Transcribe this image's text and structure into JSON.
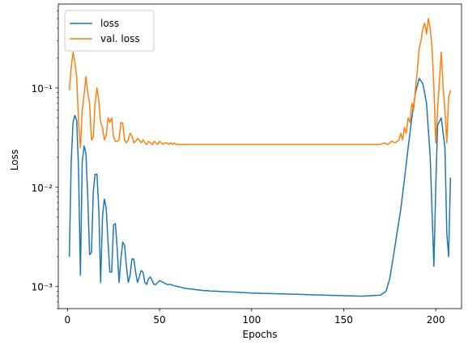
{
  "chart_data": {
    "type": "line",
    "title": "",
    "xlabel": "Epochs",
    "ylabel": "Loss",
    "xlim": [
      -5,
      214
    ],
    "ylim": [
      0.0006,
      0.7
    ],
    "yscale": "log",
    "grid": false,
    "legend_position": "top-left",
    "x_ticks": [
      0,
      50,
      100,
      150,
      200
    ],
    "x_tick_labels": [
      "0",
      "50",
      "100",
      "150",
      "200"
    ],
    "y_ticks": [
      0.001,
      0.01,
      0.1
    ],
    "y_tick_labels": [
      "10⁻³",
      "10⁻²",
      "10⁻¹"
    ],
    "series": [
      {
        "name": "loss",
        "color": "#1f77b4",
        "x": [
          1,
          2,
          3,
          4,
          5,
          6,
          7,
          8,
          9,
          10,
          11,
          12,
          13,
          14,
          15,
          16,
          17,
          18,
          19,
          20,
          21,
          22,
          23,
          24,
          25,
          26,
          27,
          28,
          29,
          30,
          31,
          32,
          33,
          34,
          35,
          36,
          37,
          38,
          39,
          40,
          41,
          42,
          43,
          44,
          45,
          46,
          47,
          48,
          50,
          52,
          54,
          56,
          58,
          60,
          62,
          64,
          66,
          68,
          70,
          72,
          74,
          76,
          78,
          80,
          85,
          90,
          95,
          100,
          110,
          120,
          130,
          140,
          150,
          160,
          165,
          170,
          173,
          175,
          177,
          179,
          181,
          183,
          185,
          187,
          189,
          191,
          193,
          195,
          197,
          199,
          200,
          201,
          203,
          205,
          206,
          207,
          208
        ],
        "y": [
          0.002,
          0.018,
          0.045,
          0.053,
          0.047,
          0.015,
          0.0013,
          0.018,
          0.026,
          0.022,
          0.008,
          0.0021,
          0.0022,
          0.009,
          0.0135,
          0.0135,
          0.006,
          0.0011,
          0.005,
          0.0076,
          0.0062,
          0.0028,
          0.0014,
          0.0014,
          0.0042,
          0.0043,
          0.0024,
          0.0011,
          0.0019,
          0.0028,
          0.0026,
          0.0016,
          0.0011,
          0.0013,
          0.0019,
          0.0019,
          0.0014,
          0.0011,
          0.00125,
          0.00145,
          0.0014,
          0.0011,
          0.00105,
          0.0012,
          0.00125,
          0.00115,
          0.00105,
          0.00105,
          0.00115,
          0.0011,
          0.00105,
          0.00105,
          0.00102,
          0.001,
          0.00098,
          0.00096,
          0.00095,
          0.00094,
          0.00093,
          0.00092,
          0.00091,
          0.00091,
          0.0009,
          0.0009,
          0.00089,
          0.00088,
          0.00087,
          0.00086,
          0.00085,
          0.00084,
          0.00083,
          0.00082,
          0.00081,
          0.0008,
          0.00081,
          0.00082,
          0.0009,
          0.0012,
          0.002,
          0.0035,
          0.006,
          0.012,
          0.025,
          0.05,
          0.09,
          0.125,
          0.11,
          0.07,
          0.02,
          0.0016,
          0.01,
          0.042,
          0.05,
          0.025,
          0.0035,
          0.002,
          0.0125
        ]
      },
      {
        "name": "val. loss",
        "color": "#ff7f0e",
        "x": [
          1,
          2,
          3,
          4,
          5,
          6,
          7,
          8,
          9,
          10,
          11,
          12,
          13,
          14,
          15,
          16,
          17,
          18,
          19,
          20,
          21,
          22,
          23,
          24,
          25,
          26,
          27,
          28,
          29,
          30,
          31,
          32,
          33,
          34,
          35,
          36,
          37,
          38,
          39,
          40,
          41,
          42,
          43,
          44,
          45,
          46,
          47,
          48,
          49,
          50,
          51,
          52,
          53,
          54,
          55,
          56,
          57,
          58,
          59,
          60,
          62,
          64,
          66,
          68,
          70,
          80,
          100,
          120,
          140,
          160,
          170,
          172,
          174,
          176,
          178,
          180,
          181,
          182,
          183,
          184,
          185,
          186,
          187,
          188,
          189,
          190,
          191,
          192,
          193,
          194,
          195,
          196,
          197,
          198,
          199,
          200,
          201,
          202,
          203,
          204,
          205,
          206,
          207,
          208
        ],
        "y": [
          0.095,
          0.16,
          0.23,
          0.18,
          0.13,
          0.045,
          0.025,
          0.06,
          0.085,
          0.13,
          0.09,
          0.07,
          0.03,
          0.032,
          0.07,
          0.1,
          0.075,
          0.045,
          0.04,
          0.03,
          0.033,
          0.05,
          0.045,
          0.05,
          0.032,
          0.029,
          0.029,
          0.03,
          0.045,
          0.044,
          0.03,
          0.028,
          0.03,
          0.035,
          0.033,
          0.028,
          0.029,
          0.031,
          0.03,
          0.028,
          0.03,
          0.028,
          0.027,
          0.029,
          0.028,
          0.027,
          0.029,
          0.028,
          0.027,
          0.029,
          0.028,
          0.027,
          0.028,
          0.028,
          0.027,
          0.028,
          0.027,
          0.028,
          0.027,
          0.027,
          0.027,
          0.027,
          0.027,
          0.027,
          0.027,
          0.027,
          0.027,
          0.027,
          0.027,
          0.027,
          0.027,
          0.028,
          0.027,
          0.029,
          0.028,
          0.03,
          0.035,
          0.03,
          0.04,
          0.035,
          0.05,
          0.045,
          0.07,
          0.06,
          0.1,
          0.15,
          0.25,
          0.3,
          0.4,
          0.45,
          0.35,
          0.5,
          0.4,
          0.25,
          0.1,
          0.028,
          0.06,
          0.12,
          0.23,
          0.1,
          0.06,
          0.028,
          0.08,
          0.095
        ]
      }
    ]
  }
}
